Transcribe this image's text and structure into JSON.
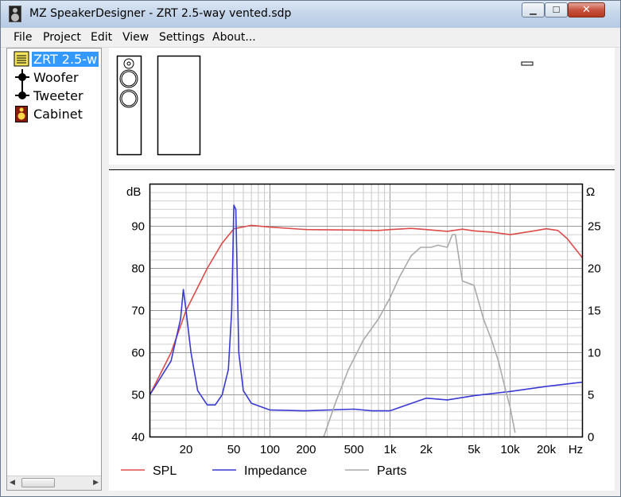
{
  "window": {
    "title": "MZ SpeakerDesigner - ZRT 2.5-way vented.sdp"
  },
  "window_buttons": {
    "minimize": "▁",
    "maximize": "☐",
    "close": "✕"
  },
  "menu": [
    "File",
    "Project",
    "Edit",
    "View",
    "Settings",
    "About..."
  ],
  "tree": [
    {
      "label": "ZRT 2.5-w",
      "icon": "document-icon",
      "selected": true
    },
    {
      "label": "Woofer",
      "icon": "driver-node-icon",
      "selected": false
    },
    {
      "label": "Tweeter",
      "icon": "driver-node-icon",
      "selected": false
    },
    {
      "label": "Cabinet",
      "icon": "cabinet-icon",
      "selected": false
    }
  ],
  "colors": {
    "spl": "#dd4b4b",
    "impedance": "#3a3ad4",
    "parts": "#aaaaaa",
    "selection": "#3399ff"
  },
  "chart_data": {
    "type": "line",
    "x_scale": "log",
    "xlim": [
      10,
      40000
    ],
    "x_ticks": [
      "20",
      "50",
      "100",
      "200",
      "500",
      "1k",
      "2k",
      "5k",
      "10k",
      "20k"
    ],
    "x_unit": "Hz",
    "ylabel_left": "dB",
    "ylabel_right": "Ω",
    "ylim_left": [
      40,
      100
    ],
    "ylim_right": [
      0,
      30
    ],
    "y_ticks_left": [
      "40",
      "50",
      "60",
      "70",
      "80",
      "90"
    ],
    "y_ticks_right": [
      "0",
      "5",
      "10",
      "15",
      "20",
      "25"
    ],
    "grid": true,
    "legend_position": "bottom",
    "series": [
      {
        "name": "SPL",
        "axis": "left",
        "points": [
          [
            10,
            50
          ],
          [
            15,
            60
          ],
          [
            20,
            70
          ],
          [
            30,
            80
          ],
          [
            40,
            86
          ],
          [
            50,
            89.4
          ],
          [
            70,
            90.2
          ],
          [
            100,
            89.8
          ],
          [
            200,
            89.2
          ],
          [
            500,
            89.1
          ],
          [
            800,
            89
          ],
          [
            1000,
            89.2
          ],
          [
            1500,
            89.5
          ],
          [
            2000,
            89.2
          ],
          [
            3000,
            88.8
          ],
          [
            4000,
            89.3
          ],
          [
            5000,
            88.9
          ],
          [
            7000,
            88.6
          ],
          [
            10000,
            88
          ],
          [
            15000,
            88.8
          ],
          [
            20000,
            89.4
          ],
          [
            25000,
            89
          ],
          [
            30000,
            87
          ],
          [
            40000,
            82.5
          ]
        ]
      },
      {
        "name": "Impedance",
        "axis": "right",
        "points": [
          [
            10,
            5
          ],
          [
            15,
            9
          ],
          [
            18,
            14
          ],
          [
            19,
            17.5
          ],
          [
            20,
            15
          ],
          [
            22,
            10
          ],
          [
            25,
            5.5
          ],
          [
            30,
            3.8
          ],
          [
            35,
            3.8
          ],
          [
            40,
            5
          ],
          [
            45,
            8
          ],
          [
            48,
            15
          ],
          [
            50,
            27.5
          ],
          [
            52,
            27
          ],
          [
            55,
            10
          ],
          [
            60,
            5.5
          ],
          [
            70,
            4
          ],
          [
            100,
            3.2
          ],
          [
            200,
            3.1
          ],
          [
            500,
            3.3
          ],
          [
            700,
            3.1
          ],
          [
            1000,
            3.1
          ],
          [
            2000,
            4.6
          ],
          [
            3000,
            4.4
          ],
          [
            5000,
            4.9
          ],
          [
            10000,
            5.4
          ],
          [
            20000,
            6
          ],
          [
            40000,
            6.5
          ]
        ]
      },
      {
        "name": "Parts",
        "axis": "left",
        "points": [
          [
            280,
            40
          ],
          [
            350,
            48
          ],
          [
            450,
            56
          ],
          [
            600,
            63
          ],
          [
            800,
            68
          ],
          [
            1000,
            73
          ],
          [
            1200,
            78
          ],
          [
            1500,
            83
          ],
          [
            1800,
            85
          ],
          [
            2200,
            85
          ],
          [
            2500,
            85.5
          ],
          [
            3000,
            85
          ],
          [
            3300,
            88
          ],
          [
            3500,
            88
          ],
          [
            4000,
            77
          ],
          [
            5000,
            76
          ],
          [
            6000,
            68
          ],
          [
            7000,
            63
          ],
          [
            8000,
            58
          ],
          [
            9000,
            52
          ],
          [
            10000,
            47
          ],
          [
            11000,
            41
          ]
        ]
      }
    ]
  }
}
